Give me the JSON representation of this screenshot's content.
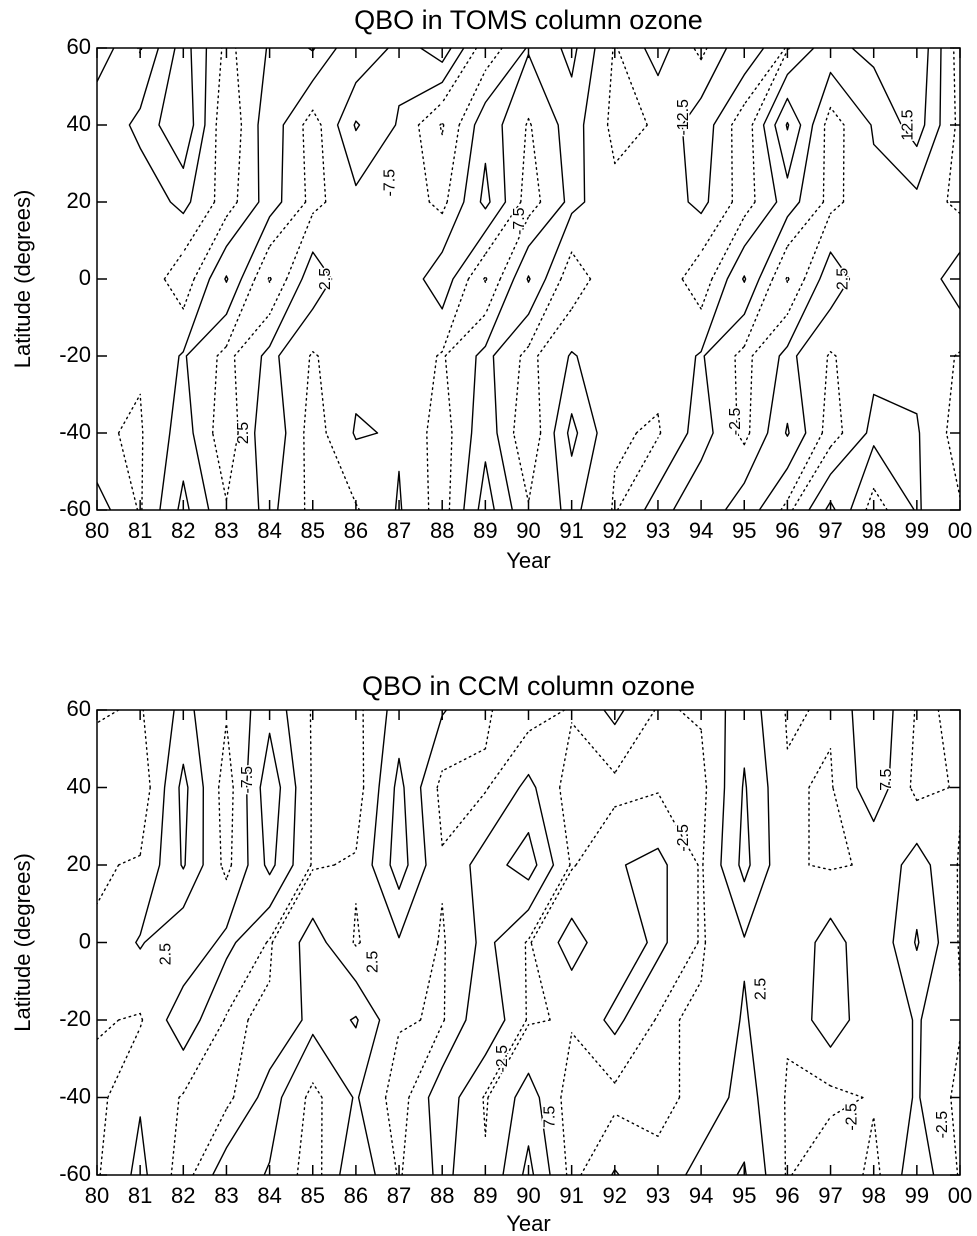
{
  "chart_data": [
    {
      "type": "contour",
      "title": "QBO in TOMS column ozone",
      "xlabel": "Year",
      "ylabel": "Latitude (degrees)",
      "xlim": [
        80,
        100
      ],
      "ylim": [
        -60,
        60
      ],
      "xticks": [
        80,
        81,
        82,
        83,
        84,
        85,
        86,
        87,
        88,
        89,
        90,
        91,
        92,
        93,
        94,
        95,
        96,
        97,
        98,
        99,
        {
          "value": 100,
          "label": "00"
        }
      ],
      "yticks": [
        -60,
        -40,
        -20,
        0,
        20,
        40,
        60
      ],
      "levels": [
        -12.5,
        -7.5,
        -2.5,
        2.5,
        7.5,
        12.5
      ],
      "negative_linestyle": "dotted",
      "color": "#000000",
      "x": [
        80,
        81,
        82,
        83,
        84,
        85,
        86,
        87,
        88,
        89,
        90,
        91,
        92,
        93,
        94,
        95,
        96,
        97,
        98,
        99,
        100
      ],
      "y": [
        -60,
        -40,
        -20,
        0,
        20,
        40,
        60
      ],
      "z": [
        [
          5,
          -3,
          9,
          -2,
          4,
          -4,
          -3,
          3,
          -5,
          10,
          -2,
          4,
          -3,
          5,
          -2,
          6,
          -4,
          9,
          -5,
          3,
          -2
        ],
        [
          -2,
          -3,
          5,
          -6,
          7,
          -5,
          3,
          2,
          -5,
          6,
          -7,
          9,
          -2,
          -3,
          5,
          -4,
          8,
          -5,
          4,
          3,
          -5
        ],
        [
          -1,
          -2,
          3,
          -4,
          4,
          -3,
          1,
          1,
          -3,
          4,
          -4,
          3,
          -1,
          -1,
          3,
          -4,
          4,
          -3,
          1,
          1,
          -3
        ],
        [
          2,
          2,
          -6,
          8,
          -8,
          6,
          -2,
          -2,
          6,
          -8,
          8,
          -6,
          2,
          2,
          -6,
          8,
          -8,
          6,
          -2,
          -2,
          6
        ],
        [
          -1,
          -1,
          4,
          -5,
          5,
          -4,
          1,
          1,
          -4,
          9,
          -5,
          4,
          -1,
          -1,
          4,
          -5,
          5,
          -4,
          1,
          1,
          -4
        ],
        [
          -2,
          4,
          12,
          -7,
          6,
          -5,
          8,
          2,
          -8,
          6,
          -3,
          5,
          -4,
          -2,
          6,
          -6,
          13,
          -5,
          3,
          10,
          -4
        ],
        [
          6,
          -3,
          10,
          -4,
          3,
          8,
          -2,
          4,
          11,
          -6,
          3,
          9,
          -3,
          5,
          -4,
          7,
          -3,
          6,
          9,
          12,
          -5
        ]
      ],
      "contour_labels": [
        {
          "x": 85.3,
          "y": 0,
          "value": 2.5
        },
        {
          "x": 83.4,
          "y": -40,
          "value": 2.5
        },
        {
          "x": 86.8,
          "y": 25,
          "value": -7.5
        },
        {
          "x": 89.8,
          "y": 15,
          "value": -7.5
        },
        {
          "x": 94.8,
          "y": -37,
          "value": -2.5
        },
        {
          "x": 97.3,
          "y": 0,
          "value": 2.5
        },
        {
          "x": 93.6,
          "y": 42,
          "value": -12.5
        },
        {
          "x": 98.8,
          "y": 40,
          "value": 12.5
        }
      ]
    },
    {
      "type": "contour",
      "title": "QBO in CCM column ozone",
      "xlabel": "Year",
      "ylabel": "Latitude (degrees)",
      "xlim": [
        80,
        100
      ],
      "ylim": [
        -60,
        60
      ],
      "xticks": [
        80,
        81,
        82,
        83,
        84,
        85,
        86,
        87,
        88,
        89,
        90,
        91,
        92,
        93,
        94,
        95,
        96,
        97,
        98,
        99,
        {
          "value": 100,
          "label": "00"
        }
      ],
      "yticks": [
        -60,
        -40,
        -20,
        0,
        20,
        40,
        60
      ],
      "levels": [
        -12.5,
        -7.5,
        -2.5,
        2.5,
        7.5,
        12.5
      ],
      "negative_linestyle": "dotted",
      "color": "#000000",
      "x": [
        80,
        81,
        82,
        83,
        84,
        85,
        86,
        87,
        88,
        89,
        90,
        91,
        92,
        93,
        94,
        95,
        96,
        97,
        98,
        99,
        100
      ],
      "y": [
        -60,
        -40,
        -20,
        0,
        20,
        40,
        60
      ],
      "z": [
        [
          -3,
          4,
          -5,
          6,
          2,
          -5,
          7,
          -3,
          4,
          -2,
          9,
          -4,
          3,
          -2,
          5,
          8,
          -3,
          2,
          -4,
          6,
          -3
        ],
        [
          -4,
          2,
          -3,
          -4,
          5,
          -4,
          3,
          -5,
          6,
          -3,
          5,
          -5,
          -4,
          -3,
          -2,
          5,
          -3,
          -4,
          -2,
          3,
          -4
        ],
        [
          -2,
          -3,
          6,
          -3,
          -2,
          4,
          8,
          -2,
          -3,
          7,
          -3,
          -2,
          4,
          -3,
          -2,
          3,
          -2,
          6,
          -2,
          3,
          -2
        ],
        [
          -2,
          3,
          -2,
          4,
          -3,
          5,
          -3,
          2,
          -3,
          4,
          -3,
          5,
          -2,
          4,
          -3,
          2,
          -2,
          5,
          -2,
          8,
          -3
        ],
        [
          -3,
          -2,
          8,
          -4,
          9,
          -3,
          -2,
          10,
          -2,
          5,
          10,
          -3,
          2,
          4,
          -3,
          9,
          -2,
          -3,
          -2,
          5,
          -3
        ],
        [
          -5,
          -6,
          9,
          -5,
          11,
          -3,
          -5,
          9,
          -4,
          -3,
          4,
          -5,
          -4,
          -3,
          -4,
          8,
          -2,
          -3,
          6,
          -4,
          -2
        ],
        [
          -2,
          -3,
          4,
          -2,
          6,
          -3,
          -4,
          5,
          3,
          -2,
          -5,
          -2,
          4,
          -3,
          -2,
          6,
          -3,
          -2,
          7,
          -3,
          -2
        ]
      ],
      "contour_labels": [
        {
          "x": 81.6,
          "y": -3,
          "value": 2.5
        },
        {
          "x": 83.5,
          "y": 42,
          "value": -7.5
        },
        {
          "x": 86.4,
          "y": -5,
          "value": 2.5
        },
        {
          "x": 89.4,
          "y": -30,
          "value": -2.5
        },
        {
          "x": 90.5,
          "y": -45,
          "value": 7.5
        },
        {
          "x": 93.6,
          "y": 27,
          "value": -2.5
        },
        {
          "x": 95.4,
          "y": -12,
          "value": 2.5
        },
        {
          "x": 97.5,
          "y": -45,
          "value": -2.5
        },
        {
          "x": 98.3,
          "y": 42,
          "value": 7.5
        },
        {
          "x": 99.6,
          "y": -47,
          "value": -2.5
        }
      ]
    }
  ]
}
